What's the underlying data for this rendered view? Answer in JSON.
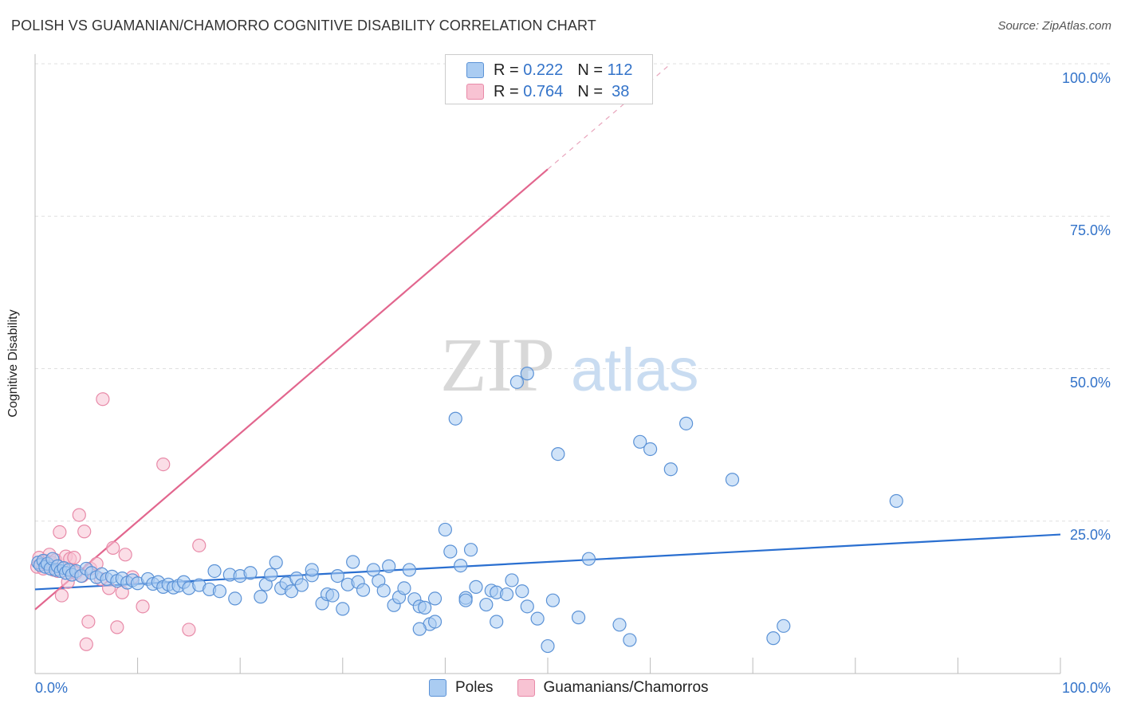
{
  "title": "POLISH VS GUAMANIAN/CHAMORRO COGNITIVE DISABILITY CORRELATION CHART",
  "source": "Source: ZipAtlas.com",
  "watermark": {
    "zip": "ZIP",
    "atlas": "atlas"
  },
  "legend": {
    "poles": {
      "r_label": "R =",
      "r_value": "0.222",
      "n_label": "N =",
      "n_value": "112"
    },
    "guam": {
      "r_label": "R =",
      "r_value": "0.764",
      "n_label": "N =",
      "n_value": "38"
    }
  },
  "colors": {
    "poles_fill": "#aaccf2",
    "poles_stroke": "#5b92d6",
    "poles_line": "#2a6fd0",
    "guam_fill": "#f8c3d3",
    "guam_stroke": "#e88aa8",
    "guam_line": "#e2668e",
    "axis_label": "#3373c9",
    "grid": "#e0e0e0"
  },
  "chart_data": {
    "type": "scatter",
    "title": "POLISH VS GUAMANIAN/CHAMORRO COGNITIVE DISABILITY CORRELATION CHART",
    "xlabel": "",
    "ylabel": "Cognitive Disability",
    "xlim": [
      0,
      100
    ],
    "ylim": [
      0,
      100
    ],
    "x_tick_labels": [
      "0.0%",
      "100.0%"
    ],
    "y_tick_labels": [
      "25.0%",
      "50.0%",
      "75.0%",
      "100.0%"
    ],
    "y_ticks": [
      25,
      50,
      75,
      100
    ],
    "grid": "horizontal dashed",
    "legend_position": "top-center",
    "series": [
      {
        "name": "Poles",
        "points": [
          [
            0.3,
            18.2
          ],
          [
            0.5,
            17.8
          ],
          [
            0.8,
            18.5
          ],
          [
            1.0,
            17.5
          ],
          [
            1.2,
            18.0
          ],
          [
            1.5,
            17.2
          ],
          [
            1.7,
            18.8
          ],
          [
            2.0,
            17.0
          ],
          [
            2.2,
            17.6
          ],
          [
            2.5,
            16.8
          ],
          [
            2.8,
            17.3
          ],
          [
            3.0,
            16.5
          ],
          [
            3.3,
            17.0
          ],
          [
            3.6,
            16.2
          ],
          [
            4.0,
            16.8
          ],
          [
            4.5,
            16.0
          ],
          [
            5.0,
            17.2
          ],
          [
            5.5,
            16.5
          ],
          [
            6.0,
            15.8
          ],
          [
            6.5,
            16.3
          ],
          [
            7.0,
            15.5
          ],
          [
            7.5,
            15.9
          ],
          [
            8.0,
            15.2
          ],
          [
            8.5,
            15.6
          ],
          [
            9.0,
            14.9
          ],
          [
            9.5,
            15.3
          ],
          [
            10.0,
            14.8
          ],
          [
            11.0,
            15.5
          ],
          [
            11.5,
            14.7
          ],
          [
            12.0,
            15.0
          ],
          [
            12.5,
            14.2
          ],
          [
            13.0,
            14.6
          ],
          [
            13.5,
            14.1
          ],
          [
            14.0,
            14.4
          ],
          [
            14.5,
            15.0
          ],
          [
            15.0,
            14.0
          ],
          [
            16.0,
            14.5
          ],
          [
            17.0,
            13.8
          ],
          [
            17.5,
            16.8
          ],
          [
            18.0,
            13.5
          ],
          [
            19.0,
            16.2
          ],
          [
            19.5,
            12.3
          ],
          [
            20.0,
            16.0
          ],
          [
            21.0,
            16.5
          ],
          [
            22.0,
            12.6
          ],
          [
            22.5,
            14.6
          ],
          [
            23.0,
            16.2
          ],
          [
            23.5,
            18.2
          ],
          [
            24.0,
            14.0
          ],
          [
            24.5,
            14.8
          ],
          [
            25.0,
            13.5
          ],
          [
            25.5,
            15.6
          ],
          [
            26.0,
            14.5
          ],
          [
            27.0,
            16.1
          ],
          [
            27.0,
            17.0
          ],
          [
            28.0,
            11.5
          ],
          [
            28.5,
            13.0
          ],
          [
            29.0,
            12.8
          ],
          [
            29.5,
            16.0
          ],
          [
            30.0,
            10.6
          ],
          [
            30.5,
            14.6
          ],
          [
            31.0,
            18.3
          ],
          [
            31.5,
            15.0
          ],
          [
            32.0,
            13.7
          ],
          [
            33.0,
            17.0
          ],
          [
            33.5,
            15.2
          ],
          [
            34.0,
            13.6
          ],
          [
            34.5,
            17.6
          ],
          [
            35.0,
            11.2
          ],
          [
            35.5,
            12.5
          ],
          [
            36.0,
            14.0
          ],
          [
            36.5,
            17.0
          ],
          [
            37.0,
            12.2
          ],
          [
            37.5,
            11.0
          ],
          [
            38.0,
            10.8
          ],
          [
            38.5,
            8.1
          ],
          [
            39.0,
            12.3
          ],
          [
            40.0,
            23.6
          ],
          [
            40.5,
            20.0
          ],
          [
            41.0,
            41.8
          ],
          [
            41.5,
            17.7
          ],
          [
            42.0,
            12.4
          ],
          [
            42.5,
            20.3
          ],
          [
            43.0,
            14.2
          ],
          [
            44.0,
            11.3
          ],
          [
            44.5,
            13.6
          ],
          [
            45.0,
            13.3
          ],
          [
            46.0,
            13.0
          ],
          [
            46.5,
            15.3
          ],
          [
            47.5,
            13.5
          ],
          [
            48.0,
            11.0
          ],
          [
            49.0,
            9.0
          ],
          [
            50.0,
            4.5
          ],
          [
            50.5,
            12.0
          ],
          [
            51.0,
            36.0
          ],
          [
            53.0,
            9.2
          ],
          [
            54.0,
            18.8
          ],
          [
            57.0,
            8.0
          ],
          [
            58.0,
            5.5
          ],
          [
            59.0,
            38.0
          ],
          [
            60.0,
            36.8
          ],
          [
            62.0,
            33.5
          ],
          [
            63.5,
            41.0
          ],
          [
            68.0,
            31.8
          ],
          [
            72.0,
            5.8
          ],
          [
            73.0,
            7.8
          ],
          [
            84.0,
            28.3
          ],
          [
            47.0,
            47.8
          ],
          [
            48.0,
            49.2
          ],
          [
            37.5,
            7.3
          ],
          [
            39.0,
            8.5
          ],
          [
            42.0,
            12.0
          ],
          [
            45.0,
            8.5
          ]
        ],
        "trend": [
          [
            0,
            13.8
          ],
          [
            100,
            22.8
          ]
        ]
      },
      {
        "name": "Guamanians/Chamorros",
        "points": [
          [
            0.2,
            17.5
          ],
          [
            0.4,
            19.0
          ],
          [
            0.6,
            18.0
          ],
          [
            0.8,
            17.2
          ],
          [
            1.0,
            18.5
          ],
          [
            1.2,
            17.8
          ],
          [
            1.4,
            19.5
          ],
          [
            1.6,
            18.2
          ],
          [
            1.8,
            17.0
          ],
          [
            2.0,
            18.6
          ],
          [
            2.2,
            16.8
          ],
          [
            2.4,
            23.2
          ],
          [
            2.6,
            12.8
          ],
          [
            3.0,
            19.2
          ],
          [
            3.2,
            15.0
          ],
          [
            3.4,
            18.8
          ],
          [
            3.6,
            17.0
          ],
          [
            3.8,
            19.0
          ],
          [
            4.0,
            16.5
          ],
          [
            4.3,
            26.0
          ],
          [
            4.6,
            16.0
          ],
          [
            4.8,
            23.3
          ],
          [
            5.0,
            4.8
          ],
          [
            5.2,
            8.5
          ],
          [
            5.4,
            17.2
          ],
          [
            6.0,
            18.0
          ],
          [
            6.4,
            15.5
          ],
          [
            6.6,
            45.0
          ],
          [
            7.2,
            14.0
          ],
          [
            7.6,
            20.6
          ],
          [
            8.0,
            7.6
          ],
          [
            8.5,
            13.3
          ],
          [
            8.8,
            19.5
          ],
          [
            9.5,
            15.8
          ],
          [
            10.5,
            11.0
          ],
          [
            12.5,
            34.3
          ],
          [
            15.0,
            7.2
          ],
          [
            16.0,
            21.0
          ]
        ],
        "trend": [
          [
            0,
            10.5
          ],
          [
            50,
            82.7
          ]
        ],
        "trend_extension": [
          [
            50,
            82.7
          ],
          [
            62,
            100
          ]
        ]
      }
    ]
  },
  "axes": {
    "ylabel": "Cognitive Disability",
    "x_left": "0.0%",
    "x_right": "100.0%",
    "y_25": "25.0%",
    "y_50": "50.0%",
    "y_75": "75.0%",
    "y_100": "100.0%"
  },
  "bottom_legend": {
    "poles": "Poles",
    "guam": "Guamanians/Chamorros"
  }
}
